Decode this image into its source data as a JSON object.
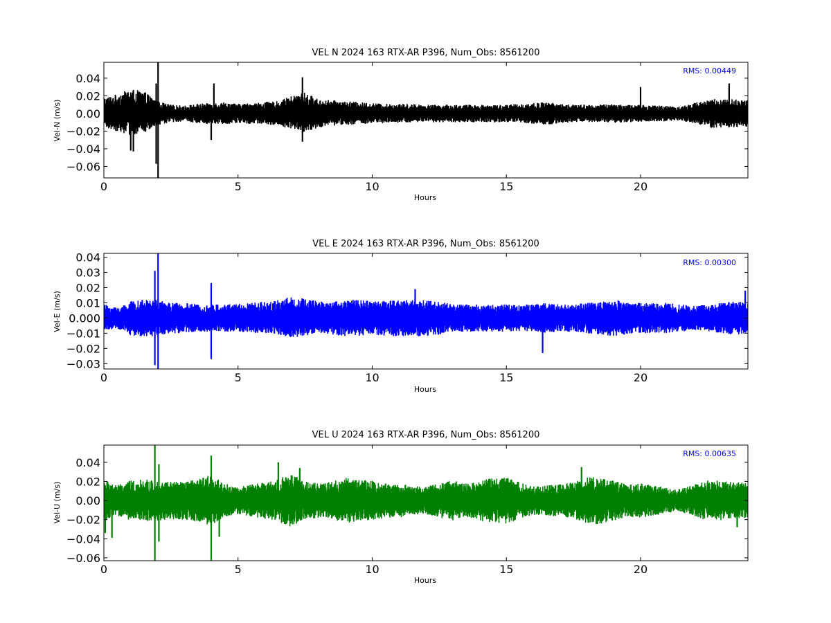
{
  "chart_data": [
    {
      "type": "line",
      "title": "VEL N 2024 163 RTX-AR  P396, Num_Obs: 8561200",
      "xlabel": "Hours",
      "ylabel": "Vel-N (m/s)",
      "xlim": [
        0,
        24
      ],
      "ylim": [
        -0.073,
        0.058
      ],
      "x_ticks": [
        0,
        5,
        10,
        15,
        20
      ],
      "x_tick_labels": [
        "0",
        "5",
        "10",
        "15",
        "20"
      ],
      "y_ticks": [
        -0.06,
        -0.04,
        -0.02,
        0.0,
        0.02,
        0.04
      ],
      "y_tick_labels": [
        "−0.06",
        "−0.04",
        "−0.02",
        "0.00",
        "0.02",
        "0.04"
      ],
      "grid": false,
      "annotation": "RMS:  0.00449",
      "series_color": "#000000",
      "annotation_color": "#0000ff",
      "envelope": {
        "hours": [
          0,
          0.5,
          1,
          1.5,
          2,
          2.5,
          3,
          3.5,
          4,
          4.5,
          5,
          5.5,
          6,
          6.5,
          7,
          7.5,
          8,
          8.5,
          9,
          9.5,
          10,
          10.5,
          11,
          11.5,
          12,
          12.5,
          13,
          13.5,
          14,
          14.5,
          15,
          15.5,
          16,
          16.5,
          17,
          17.5,
          18,
          18.5,
          19,
          19.5,
          20,
          20.5,
          21,
          21.5,
          22,
          22.5,
          23,
          23.5,
          24
        ],
        "upper": [
          0.018,
          0.022,
          0.028,
          0.025,
          0.014,
          0.01,
          0.009,
          0.011,
          0.012,
          0.013,
          0.011,
          0.012,
          0.013,
          0.014,
          0.02,
          0.024,
          0.016,
          0.015,
          0.014,
          0.013,
          0.012,
          0.011,
          0.011,
          0.011,
          0.01,
          0.01,
          0.01,
          0.01,
          0.01,
          0.01,
          0.01,
          0.011,
          0.012,
          0.013,
          0.011,
          0.01,
          0.01,
          0.01,
          0.011,
          0.01,
          0.01,
          0.009,
          0.009,
          0.008,
          0.012,
          0.016,
          0.017,
          0.016,
          0.016
        ],
        "lower": [
          -0.016,
          -0.02,
          -0.025,
          -0.022,
          -0.014,
          -0.01,
          -0.009,
          -0.011,
          -0.012,
          -0.012,
          -0.011,
          -0.012,
          -0.012,
          -0.014,
          -0.018,
          -0.022,
          -0.016,
          -0.014,
          -0.013,
          -0.012,
          -0.012,
          -0.011,
          -0.011,
          -0.01,
          -0.01,
          -0.01,
          -0.01,
          -0.01,
          -0.01,
          -0.01,
          -0.01,
          -0.011,
          -0.012,
          -0.013,
          -0.011,
          -0.01,
          -0.01,
          -0.01,
          -0.011,
          -0.01,
          -0.01,
          -0.009,
          -0.009,
          -0.008,
          -0.012,
          -0.016,
          -0.017,
          -0.016,
          -0.016
        ]
      },
      "spikes": [
        {
          "x": 1.0,
          "y": -0.042
        },
        {
          "x": 1.1,
          "y": -0.043
        },
        {
          "x": 1.95,
          "y": 0.034
        },
        {
          "x": 1.95,
          "y": -0.057
        },
        {
          "x": 2.02,
          "y": 0.058
        },
        {
          "x": 2.02,
          "y": -0.073
        },
        {
          "x": 4.1,
          "y": 0.034
        },
        {
          "x": 4.0,
          "y": -0.03
        },
        {
          "x": 7.4,
          "y": 0.041
        },
        {
          "x": 7.4,
          "y": -0.032
        },
        {
          "x": 20.0,
          "y": 0.03
        },
        {
          "x": 23.3,
          "y": 0.034
        }
      ]
    },
    {
      "type": "line",
      "title": "VEL E 2024 163 RTX-AR  P396, Num_Obs: 8561200",
      "xlabel": "Hours",
      "ylabel": "Vel-E (m/s)",
      "xlim": [
        0,
        24
      ],
      "ylim": [
        -0.0335,
        0.0425
      ],
      "x_ticks": [
        0,
        5,
        10,
        15,
        20
      ],
      "x_tick_labels": [
        "0",
        "5",
        "10",
        "15",
        "20"
      ],
      "y_ticks": [
        -0.03,
        -0.02,
        -0.01,
        0.0,
        0.01,
        0.02,
        0.03,
        0.04
      ],
      "y_tick_labels": [
        "−0.03",
        "−0.02",
        "−0.01",
        "0.000",
        "0.01",
        "0.02",
        "0.03",
        "0.04"
      ],
      "grid": false,
      "annotation": "RMS:  0.00300",
      "series_color": "#0000ff",
      "annotation_color": "#0000ff",
      "envelope": {
        "hours": [
          0,
          0.5,
          1,
          1.5,
          2,
          2.5,
          3,
          3.5,
          4,
          4.5,
          5,
          5.5,
          6,
          6.5,
          7,
          7.5,
          8,
          8.5,
          9,
          9.5,
          10,
          10.5,
          11,
          11.5,
          12,
          12.5,
          13,
          13.5,
          14,
          14.5,
          15,
          15.5,
          16,
          16.5,
          17,
          17.5,
          18,
          18.5,
          19,
          19.5,
          20,
          20.5,
          21,
          21.5,
          22,
          22.5,
          23,
          23.5,
          24
        ],
        "upper": [
          0.009,
          0.007,
          0.011,
          0.012,
          0.012,
          0.01,
          0.01,
          0.009,
          0.009,
          0.009,
          0.01,
          0.01,
          0.011,
          0.012,
          0.014,
          0.013,
          0.011,
          0.011,
          0.012,
          0.012,
          0.011,
          0.012,
          0.012,
          0.012,
          0.012,
          0.011,
          0.009,
          0.009,
          0.009,
          0.009,
          0.009,
          0.009,
          0.009,
          0.01,
          0.009,
          0.009,
          0.01,
          0.011,
          0.012,
          0.011,
          0.01,
          0.01,
          0.01,
          0.009,
          0.008,
          0.009,
          0.01,
          0.011,
          0.011
        ],
        "lower": [
          -0.008,
          -0.007,
          -0.012,
          -0.012,
          -0.012,
          -0.01,
          -0.01,
          -0.009,
          -0.009,
          -0.009,
          -0.009,
          -0.01,
          -0.01,
          -0.011,
          -0.013,
          -0.012,
          -0.01,
          -0.011,
          -0.012,
          -0.012,
          -0.011,
          -0.012,
          -0.012,
          -0.012,
          -0.012,
          -0.011,
          -0.009,
          -0.009,
          -0.009,
          -0.009,
          -0.009,
          -0.009,
          -0.009,
          -0.01,
          -0.009,
          -0.009,
          -0.01,
          -0.011,
          -0.012,
          -0.011,
          -0.01,
          -0.01,
          -0.01,
          -0.009,
          -0.008,
          -0.009,
          -0.01,
          -0.011,
          -0.011
        ]
      },
      "spikes": [
        {
          "x": 1.9,
          "y": 0.031
        },
        {
          "x": 1.9,
          "y": -0.031
        },
        {
          "x": 2.02,
          "y": 0.0425
        },
        {
          "x": 2.02,
          "y": -0.0335
        },
        {
          "x": 4.0,
          "y": 0.023
        },
        {
          "x": 4.0,
          "y": -0.027
        },
        {
          "x": 11.6,
          "y": 0.019
        },
        {
          "x": 16.35,
          "y": -0.023
        },
        {
          "x": 23.9,
          "y": 0.018
        }
      ]
    },
    {
      "type": "line",
      "title": "VEL U 2024 163 RTX-AR  P396, Num_Obs: 8561200",
      "xlabel": "Hours",
      "ylabel": "Vel-U (m/s)",
      "xlim": [
        0,
        24
      ],
      "ylim": [
        -0.063,
        0.058
      ],
      "x_ticks": [
        0,
        5,
        10,
        15,
        20
      ],
      "x_tick_labels": [
        "0",
        "5",
        "10",
        "15",
        "20"
      ],
      "y_ticks": [
        -0.06,
        -0.04,
        -0.02,
        0.0,
        0.02,
        0.04
      ],
      "y_tick_labels": [
        "−0.06",
        "−0.04",
        "−0.02",
        "0.00",
        "0.02",
        "0.04"
      ],
      "grid": false,
      "annotation": "RMS:  0.00635",
      "series_color": "#008000",
      "annotation_color": "#0000ff",
      "envelope": {
        "hours": [
          0,
          0.5,
          1,
          1.5,
          2,
          2.5,
          3,
          3.5,
          4,
          4.5,
          5,
          5.5,
          6,
          6.5,
          7,
          7.5,
          8,
          8.5,
          9,
          9.5,
          10,
          10.5,
          11,
          11.5,
          12,
          12.5,
          13,
          13.5,
          14,
          14.5,
          15,
          15.5,
          16,
          16.5,
          17,
          17.5,
          18,
          18.5,
          19,
          19.5,
          20,
          20.5,
          21,
          21.5,
          22,
          22.5,
          23,
          23.5,
          24
        ],
        "upper": [
          0.022,
          0.016,
          0.021,
          0.022,
          0.021,
          0.02,
          0.02,
          0.022,
          0.027,
          0.018,
          0.014,
          0.017,
          0.019,
          0.023,
          0.028,
          0.02,
          0.018,
          0.02,
          0.024,
          0.022,
          0.021,
          0.018,
          0.018,
          0.015,
          0.015,
          0.018,
          0.021,
          0.018,
          0.021,
          0.024,
          0.025,
          0.019,
          0.015,
          0.016,
          0.017,
          0.019,
          0.024,
          0.025,
          0.021,
          0.017,
          0.018,
          0.016,
          0.013,
          0.012,
          0.017,
          0.021,
          0.021,
          0.019,
          0.019
        ],
        "lower": [
          -0.022,
          -0.016,
          -0.021,
          -0.022,
          -0.021,
          -0.02,
          -0.02,
          -0.022,
          -0.027,
          -0.018,
          -0.014,
          -0.017,
          -0.019,
          -0.023,
          -0.028,
          -0.02,
          -0.018,
          -0.02,
          -0.024,
          -0.022,
          -0.021,
          -0.018,
          -0.018,
          -0.015,
          -0.015,
          -0.018,
          -0.021,
          -0.018,
          -0.021,
          -0.024,
          -0.025,
          -0.019,
          -0.015,
          -0.016,
          -0.017,
          -0.019,
          -0.024,
          -0.025,
          -0.021,
          -0.017,
          -0.018,
          -0.016,
          -0.013,
          -0.012,
          -0.017,
          -0.021,
          -0.021,
          -0.019,
          -0.019
        ]
      },
      "spikes": [
        {
          "x": 0.05,
          "y": -0.034
        },
        {
          "x": 0.3,
          "y": -0.039
        },
        {
          "x": 1.9,
          "y": 0.058
        },
        {
          "x": 1.9,
          "y": -0.063
        },
        {
          "x": 2.05,
          "y": 0.038
        },
        {
          "x": 2.05,
          "y": -0.043
        },
        {
          "x": 4.0,
          "y": 0.047
        },
        {
          "x": 4.0,
          "y": -0.063
        },
        {
          "x": 4.3,
          "y": -0.038
        },
        {
          "x": 6.5,
          "y": 0.04
        },
        {
          "x": 7.3,
          "y": 0.034
        },
        {
          "x": 17.8,
          "y": 0.035
        },
        {
          "x": 23.6,
          "y": -0.028
        }
      ]
    }
  ]
}
